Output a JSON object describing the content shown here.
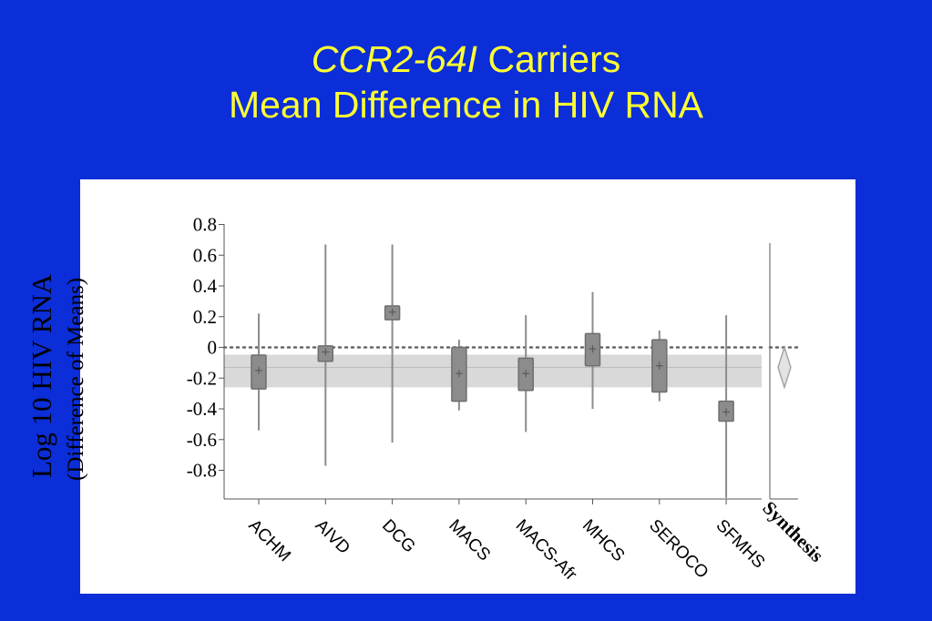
{
  "title": {
    "line1_italic": "CCR2-64I",
    "line1_rest": " Carriers",
    "line2": "Mean Difference in HIV RNA"
  },
  "colors": {
    "background": "#0b2ed8",
    "title": "#ffff33",
    "box_fill": "#8c8c8c",
    "box_stroke": "#6e6e6e",
    "whisker": "#8c8c8c",
    "band": "#d9d9d9",
    "zero_line": "#666666"
  },
  "chart_data": {
    "type": "box",
    "ylabel": "Log 10 HIV RNA",
    "ylabel_sub": "(Difference of Means)",
    "ylim": [
      -0.98,
      0.8
    ],
    "yticks": [
      "0.8",
      "0.6",
      "0.4",
      "0.2",
      "0",
      "-0.2",
      "-0.4",
      "-0.6",
      "-0.8"
    ],
    "ytick_values": [
      0.8,
      0.6,
      0.4,
      0.2,
      0,
      -0.2,
      -0.4,
      -0.6,
      -0.8
    ],
    "reference_line": 0,
    "pooled_band": {
      "low": -0.26,
      "high": 0.0,
      "mid": -0.13
    },
    "categories": [
      "ACHM",
      "AIVD",
      "DCG",
      "MACS",
      "MACS-Afr",
      "MHCS",
      "SEROCO",
      "SFMHS"
    ],
    "studies": [
      {
        "name": "ACHM",
        "mean": -0.15,
        "box_low": -0.27,
        "box_high": -0.05,
        "ci_low": -0.54,
        "ci_high": 0.22
      },
      {
        "name": "AIVD",
        "mean": -0.03,
        "box_low": -0.09,
        "box_high": 0.01,
        "ci_low": -0.77,
        "ci_high": 0.67
      },
      {
        "name": "DCG",
        "mean": 0.23,
        "box_low": 0.18,
        "box_high": 0.27,
        "ci_low": -0.62,
        "ci_high": 0.67
      },
      {
        "name": "MACS",
        "mean": -0.17,
        "box_low": -0.35,
        "box_high": 0.0,
        "ci_low": -0.41,
        "ci_high": 0.05
      },
      {
        "name": "MACS-Afr",
        "mean": -0.17,
        "box_low": -0.28,
        "box_high": -0.07,
        "ci_low": -0.55,
        "ci_high": 0.21
      },
      {
        "name": "MHCS",
        "mean": -0.01,
        "box_low": -0.12,
        "box_high": 0.09,
        "ci_low": -0.4,
        "ci_high": 0.36
      },
      {
        "name": "SEROCO",
        "mean": -0.12,
        "box_low": -0.29,
        "box_high": 0.05,
        "ci_low": -0.35,
        "ci_high": 0.11
      },
      {
        "name": "SFMHS",
        "mean": -0.42,
        "box_low": -0.48,
        "box_high": -0.35,
        "ci_low": -0.98,
        "ci_high": 0.21
      }
    ],
    "synthesis": {
      "label": "Synthesis",
      "mean": -0.13,
      "low": -0.26,
      "high": 0.0
    },
    "grid": false
  }
}
